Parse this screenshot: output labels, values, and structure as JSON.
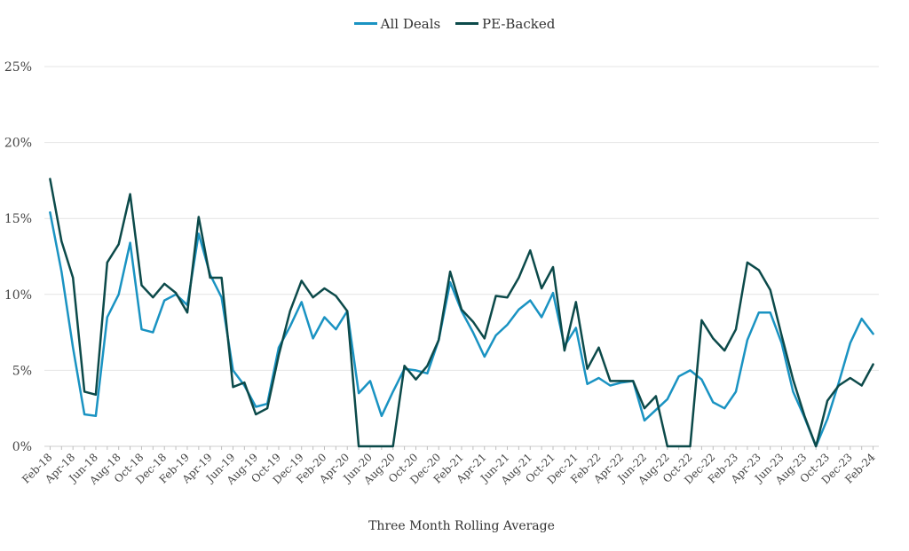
{
  "chart_data": {
    "type": "line",
    "title": "",
    "xlabel": "Three Month Rolling Average",
    "ylabel": "",
    "ylim": [
      0,
      25
    ],
    "y_ticks": [
      0,
      5,
      10,
      15,
      20,
      25
    ],
    "y_tick_labels": [
      "0%",
      "5%",
      "10%",
      "15%",
      "20%",
      "25%"
    ],
    "grid": true,
    "legend_position": "top-center",
    "x_tick_labels": [
      "Feb-18",
      "Apr-18",
      "Jun-18",
      "Aug-18",
      "Oct-18",
      "Dec-18",
      "Feb-19",
      "Apr-19",
      "Jun-19",
      "Aug-19",
      "Oct-19",
      "Dec-19",
      "Feb-20",
      "Apr-20",
      "Jun-20",
      "Aug-20",
      "Oct-20",
      "Dec-20",
      "Feb-21",
      "Apr-21",
      "Jun-21",
      "Aug-21",
      "Oct-21",
      "Dec-21",
      "Feb-22",
      "Apr-22",
      "Jun-22",
      "Aug-22",
      "Oct-22",
      "Dec-22",
      "Feb-23",
      "Apr-23",
      "Jun-23",
      "Aug-23",
      "Oct-23",
      "Dec-23",
      "Feb-24"
    ],
    "x": [
      "Feb-18",
      "Mar-18",
      "Apr-18",
      "May-18",
      "Jun-18",
      "Jul-18",
      "Aug-18",
      "Sep-18",
      "Oct-18",
      "Nov-18",
      "Dec-18",
      "Jan-19",
      "Feb-19",
      "Mar-19",
      "Apr-19",
      "May-19",
      "Jun-19",
      "Jul-19",
      "Aug-19",
      "Sep-19",
      "Oct-19",
      "Nov-19",
      "Dec-19",
      "Jan-20",
      "Feb-20",
      "Mar-20",
      "Apr-20",
      "May-20",
      "Jun-20",
      "Jul-20",
      "Aug-20",
      "Sep-20",
      "Oct-20",
      "Nov-20",
      "Dec-20",
      "Jan-21",
      "Feb-21",
      "Mar-21",
      "Apr-21",
      "May-21",
      "Jun-21",
      "Jul-21",
      "Aug-21",
      "Sep-21",
      "Oct-21",
      "Nov-21",
      "Dec-21",
      "Jan-22",
      "Feb-22",
      "Mar-22",
      "Apr-22",
      "May-22",
      "Jun-22",
      "Jul-22",
      "Aug-22",
      "Sep-22",
      "Oct-22",
      "Nov-22",
      "Dec-22",
      "Jan-23",
      "Feb-23",
      "Mar-23",
      "Apr-23",
      "May-23",
      "Jun-23",
      "Jul-23",
      "Aug-23",
      "Sep-23",
      "Oct-23",
      "Nov-23",
      "Dec-23",
      "Jan-24",
      "Feb-24"
    ],
    "series": [
      {
        "name": "All Deals",
        "color": "#1a93c2",
        "values": [
          15.4,
          11.5,
          6.5,
          2.1,
          2.0,
          8.5,
          10.0,
          13.4,
          7.7,
          7.5,
          9.6,
          10.0,
          9.3,
          14.0,
          11.3,
          9.8,
          5.0,
          4.0,
          2.6,
          2.8,
          6.5,
          7.9,
          9.5,
          7.1,
          8.5,
          7.7,
          8.9,
          3.5,
          4.3,
          2.0,
          3.6,
          5.1,
          5.0,
          4.8,
          7.0,
          10.8,
          8.9,
          7.5,
          5.9,
          7.3,
          8.0,
          9.0,
          9.6,
          8.5,
          10.1,
          6.6,
          7.8,
          4.1,
          4.5,
          4.0,
          4.2,
          4.3,
          1.7,
          2.4,
          3.1,
          4.6,
          5.0,
          4.4,
          2.9,
          2.5,
          3.6,
          7.0,
          8.8,
          8.8,
          6.8,
          3.6,
          1.9,
          0.0,
          1.8,
          4.2,
          6.8,
          8.4,
          7.4
        ]
      },
      {
        "name": "PE-Backed",
        "color": "#0c4a4a",
        "values": [
          17.6,
          13.5,
          11.1,
          3.6,
          3.4,
          12.1,
          13.3,
          16.6,
          10.6,
          9.8,
          10.7,
          10.1,
          8.8,
          15.1,
          11.1,
          11.1,
          3.9,
          4.2,
          2.1,
          2.5,
          6.0,
          8.9,
          10.9,
          9.8,
          10.4,
          9.9,
          8.9,
          0.0,
          0.0,
          0.0,
          0.0,
          5.3,
          4.4,
          5.3,
          7.0,
          11.5,
          9.0,
          8.2,
          7.1,
          9.9,
          9.8,
          11.1,
          12.9,
          10.4,
          11.8,
          6.3,
          9.5,
          5.1,
          6.5,
          4.3,
          4.3,
          4.3,
          2.5,
          3.3,
          0.0,
          0.0,
          0.0,
          8.3,
          7.1,
          6.3,
          7.7,
          12.1,
          11.6,
          10.3,
          7.3,
          4.4,
          2.0,
          0.0,
          3.0,
          4.0,
          4.5,
          4.0,
          5.4
        ]
      }
    ]
  }
}
